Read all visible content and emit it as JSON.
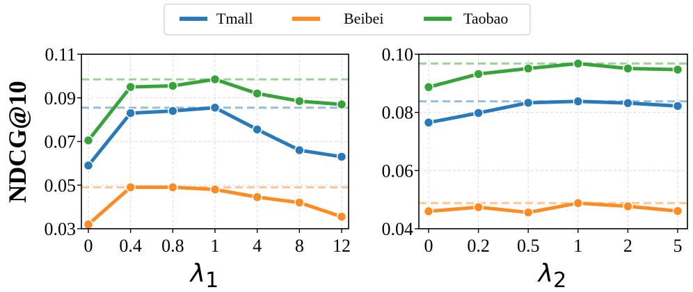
{
  "legend": [
    {
      "name": "Tmall",
      "color": "#2a7ab9"
    },
    {
      "name": "Beibei",
      "color": "#ff8b25"
    },
    {
      "name": "Taobao",
      "color": "#38a33a"
    }
  ],
  "y_axis_label": "NDCG@10",
  "chart_data": [
    {
      "type": "line",
      "xlabel_symbol": "λ",
      "xlabel_subscript": "1",
      "ylabel": "NDCG@10",
      "categories": [
        "0",
        "0.4",
        "0.8",
        "1",
        "4",
        "8",
        "12"
      ],
      "ylim": [
        0.03,
        0.11
      ],
      "yticks": [
        0.03,
        0.05,
        0.07,
        0.09,
        0.11
      ],
      "ytick_labels": [
        "0.03",
        "0.05",
        "0.07",
        "0.09",
        "0.11"
      ],
      "grid": true,
      "series": [
        {
          "name": "Tmall",
          "color": "#2a7ab9",
          "values": [
            0.059,
            0.083,
            0.084,
            0.0855,
            0.0755,
            0.066,
            0.063
          ],
          "baseline": 0.0855
        },
        {
          "name": "Beibei",
          "color": "#ff8b25",
          "values": [
            0.032,
            0.049,
            0.049,
            0.048,
            0.0445,
            0.042,
            0.0355
          ],
          "baseline": 0.049
        },
        {
          "name": "Taobao",
          "color": "#38a33a",
          "values": [
            0.0705,
            0.095,
            0.0955,
            0.0985,
            0.092,
            0.0885,
            0.087
          ],
          "baseline": 0.0985
        }
      ]
    },
    {
      "type": "line",
      "xlabel_symbol": "λ",
      "xlabel_subscript": "2",
      "ylabel": "",
      "categories": [
        "0",
        "0.2",
        "0.5",
        "1",
        "2",
        "5"
      ],
      "ylim": [
        0.04,
        0.1
      ],
      "yticks": [
        0.04,
        0.06,
        0.08,
        0.1
      ],
      "ytick_labels": [
        "0.04",
        "0.06",
        "0.08",
        "0.10"
      ],
      "grid": true,
      "series": [
        {
          "name": "Tmall",
          "color": "#2a7ab9",
          "values": [
            0.0765,
            0.0798,
            0.0833,
            0.0838,
            0.0832,
            0.0822
          ],
          "baseline": 0.0838
        },
        {
          "name": "Beibei",
          "color": "#ff8b25",
          "values": [
            0.046,
            0.0474,
            0.0456,
            0.0488,
            0.0477,
            0.0461
          ],
          "baseline": 0.0488
        },
        {
          "name": "Taobao",
          "color": "#38a33a",
          "values": [
            0.0887,
            0.0932,
            0.0951,
            0.0968,
            0.0951,
            0.0947
          ],
          "baseline": 0.0968
        }
      ]
    }
  ]
}
